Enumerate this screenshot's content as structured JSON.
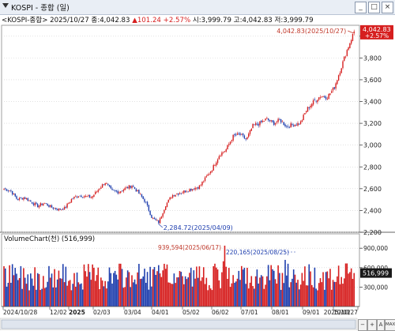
{
  "window": {
    "title": "KOSPI - 종합 (일)",
    "buttons": [
      "_",
      "□",
      "×"
    ]
  },
  "info": {
    "prefix": "<KOSPI-종합> 2025/10/27 종:4,042.83",
    "change": "▲101.24 +2.57%",
    "suffix": " 시:3,999.79 고:4,042.83 저:3,999.79"
  },
  "price_axis": {
    "ticks": [
      "4,000",
      "3,800",
      "3,600",
      "3,400",
      "3,200",
      "3,000",
      "2,800",
      "2,600",
      "2,400",
      "2,200"
    ],
    "current_value": "4,042.83",
    "current_change": "+2.57%"
  },
  "annotations": {
    "high": "4,042.83(2025/10/27)",
    "low": "2,284.72(2025/04/09)",
    "vol_max": "939,594(2025/06/17)",
    "vol_second": "220,165(2025/08/25)"
  },
  "volume": {
    "title": "VolumeChart(천) (516,999)",
    "ticks": [
      "900,000",
      "600,000",
      "300,000"
    ],
    "current": "516,999"
  },
  "x_axis": {
    "labels": [
      "2024/10/28",
      "12/02",
      "2025",
      "02/03",
      "03/04",
      "04/01",
      "05/02",
      "06/02",
      "07/01",
      "08/01",
      "09/01",
      "10/01",
      "2025/10/27"
    ]
  },
  "nav_buttons": [
    "−",
    "+",
    "A",
    "MAX"
  ],
  "colors": {
    "up": "#d61f1f",
    "down": "#1f3fae",
    "grid": "#d0d0d0",
    "axis_bg": "#ffffff"
  },
  "chart_data": {
    "type": "candlestick",
    "title": "",
    "series": [
      {
        "name": "KOSPI",
        "x": [
          "2024-10-28",
          "2024-11-04",
          "2024-11-11",
          "2024-11-18",
          "2024-11-25",
          "2024-12-02",
          "2024-12-09",
          "2024-12-16",
          "2024-12-23",
          "2024-12-30",
          "2025-01-06",
          "2025-01-13",
          "2025-01-20",
          "2025-02-03",
          "2025-02-10",
          "2025-02-17",
          "2025-02-24",
          "2025-03-04",
          "2025-03-10",
          "2025-03-17",
          "2025-03-24",
          "2025-03-31",
          "2025-04-07",
          "2025-04-09",
          "2025-04-14",
          "2025-04-21",
          "2025-04-28",
          "2025-05-05",
          "2025-05-12",
          "2025-05-19",
          "2025-05-26",
          "2025-06-02",
          "2025-06-09",
          "2025-06-16",
          "2025-06-23",
          "2025-06-30",
          "2025-07-07",
          "2025-07-14",
          "2025-07-21",
          "2025-07-28",
          "2025-08-04",
          "2025-08-11",
          "2025-08-18",
          "2025-08-25",
          "2025-09-01",
          "2025-09-08",
          "2025-09-15",
          "2025-09-22",
          "2025-09-29",
          "2025-10-06",
          "2025-10-13",
          "2025-10-20",
          "2025-10-27"
        ],
        "close": [
          2600,
          2580,
          2500,
          2520,
          2480,
          2440,
          2470,
          2430,
          2410,
          2420,
          2500,
          2540,
          2530,
          2520,
          2590,
          2660,
          2580,
          2570,
          2600,
          2630,
          2560,
          2480,
          2330,
          2290,
          2450,
          2540,
          2560,
          2580,
          2600,
          2620,
          2700,
          2790,
          2910,
          2960,
          3080,
          3100,
          3050,
          3180,
          3200,
          3240,
          3200,
          3230,
          3170,
          3190,
          3200,
          3330,
          3400,
          3450,
          3440,
          3520,
          3700,
          3880,
          4042.83
        ]
      }
    ],
    "volume_series": {
      "name": "VolumeChart",
      "unit": "천",
      "last": 516999
    },
    "ylim": [
      2200,
      4100
    ],
    "volume_ylim": [
      0,
      1000000
    ],
    "grid": true,
    "xlabel": "",
    "ylabel": ""
  }
}
